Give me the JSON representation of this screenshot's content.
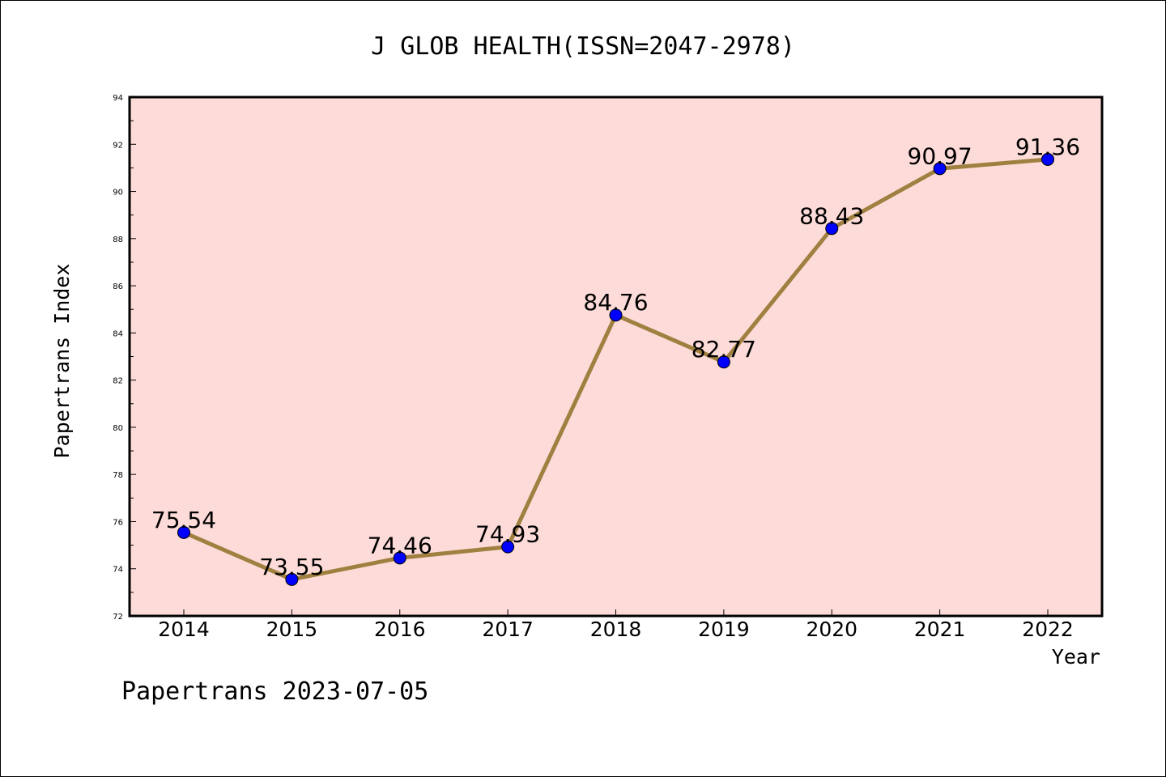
{
  "chart_data": {
    "type": "line",
    "title": "J GLOB HEALTH(ISSN=2047-2978)",
    "xlabel": "Year",
    "ylabel": "Papertrans Index",
    "footer": "Papertrans 2023-07-05",
    "categories": [
      "2014",
      "2015",
      "2016",
      "2017",
      "2018",
      "2019",
      "2020",
      "2021",
      "2022"
    ],
    "values": [
      75.54,
      73.55,
      74.46,
      74.93,
      84.76,
      82.77,
      88.43,
      90.97,
      91.36
    ],
    "data_labels": [
      "75.54",
      "73.55",
      "74.46",
      "74.93",
      "84.76",
      "82.77",
      "88.43",
      "90.97",
      "91.36"
    ],
    "ylim": [
      72,
      94
    ],
    "y_ticks": [
      "72",
      "74",
      "76",
      "78",
      "80",
      "82",
      "84",
      "86",
      "88",
      "90",
      "92",
      "94"
    ],
    "grid": false,
    "legend": "none",
    "colors": {
      "plot_background": "#fddbd8",
      "line": "#a08040",
      "marker": "#0000ff",
      "frame": "#000000"
    }
  }
}
